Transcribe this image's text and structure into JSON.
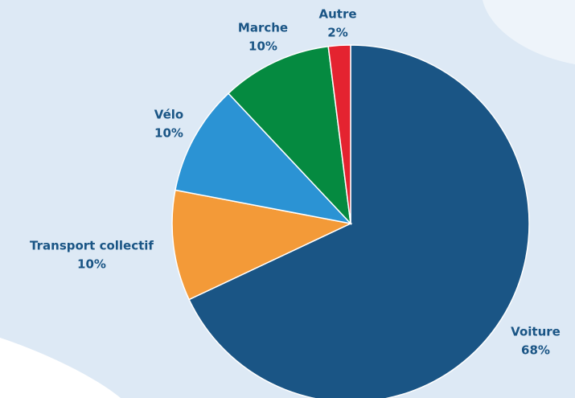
{
  "chart_data": {
    "type": "pie",
    "categories": [
      "Voiture",
      "Transport collectif",
      "Vélo",
      "Marche",
      "Autre"
    ],
    "values": [
      68,
      10,
      10,
      10,
      2
    ],
    "value_labels": [
      "68%",
      "10%",
      "10%",
      "10%",
      "2%"
    ],
    "colors": [
      "#1a5585",
      "#f39a38",
      "#2b93d4",
      "#058a40",
      "#e42330"
    ]
  }
}
